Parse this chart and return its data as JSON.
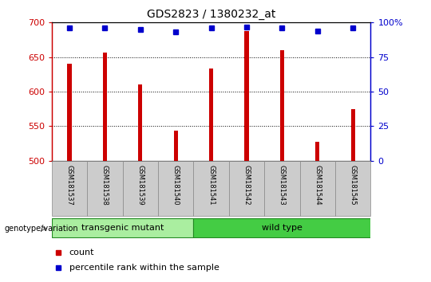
{
  "title": "GDS2823 / 1380232_at",
  "samples": [
    "GSM181537",
    "GSM181538",
    "GSM181539",
    "GSM181540",
    "GSM181541",
    "GSM181542",
    "GSM181543",
    "GSM181544",
    "GSM181545"
  ],
  "counts": [
    640,
    657,
    610,
    544,
    634,
    688,
    660,
    527,
    575
  ],
  "percentile_ranks": [
    96,
    96,
    95,
    93,
    96,
    97,
    96,
    94,
    96
  ],
  "ylim_left": [
    500,
    700
  ],
  "ylim_right": [
    0,
    100
  ],
  "yticks_left": [
    500,
    550,
    600,
    650,
    700
  ],
  "yticks_right": [
    0,
    25,
    50,
    75,
    100
  ],
  "bar_color": "#cc0000",
  "dot_color": "#0000cc",
  "transgenic_count": 4,
  "transgenic_label": "transgenic mutant",
  "wildtype_label": "wild type",
  "group_color_transgenic": "#aaeea0",
  "group_color_wildtype": "#44cc44",
  "left_axis_color": "#cc0000",
  "right_axis_color": "#0000cc",
  "legend_count_label": "count",
  "legend_pct_label": "percentile rank within the sample",
  "xtick_bg_color": "#cccccc",
  "bar_width": 0.12
}
